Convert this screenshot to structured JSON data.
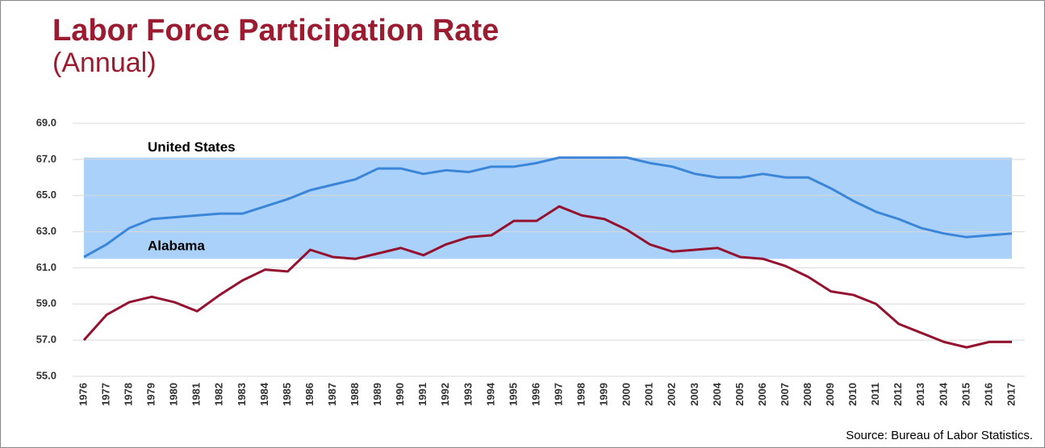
{
  "chart_data": {
    "type": "line",
    "title": "Labor Force Participation Rate",
    "subtitle": "(Annual)",
    "source": "Source:  Bureau of Labor Statistics.",
    "categories": [
      "1976",
      "1977",
      "1978",
      "1979",
      "1980",
      "1981",
      "1982",
      "1983",
      "1984",
      "1985",
      "1986",
      "1987",
      "1988",
      "1989",
      "1990",
      "1991",
      "1992",
      "1993",
      "1994",
      "1995",
      "1996",
      "1997",
      "1998",
      "1999",
      "2000",
      "2001",
      "2002",
      "2003",
      "2004",
      "2005",
      "2006",
      "2007",
      "2008",
      "2009",
      "2010",
      "2011",
      "2012",
      "2013",
      "2014",
      "2015",
      "2016",
      "2017"
    ],
    "series": [
      {
        "name": "United States",
        "color": "#3b86d8",
        "values": [
          61.6,
          62.3,
          63.2,
          63.7,
          63.8,
          63.9,
          64.0,
          64.0,
          64.4,
          64.8,
          65.3,
          65.6,
          65.9,
          66.5,
          66.5,
          66.2,
          66.4,
          66.3,
          66.6,
          66.6,
          66.8,
          67.1,
          67.1,
          67.1,
          67.1,
          66.8,
          66.6,
          66.2,
          66.0,
          66.0,
          66.2,
          66.0,
          66.0,
          65.4,
          64.7,
          64.1,
          63.7,
          63.2,
          62.9,
          62.7,
          62.8,
          62.9
        ]
      },
      {
        "name": "Alabama",
        "color": "#94122f",
        "values": [
          57.0,
          58.4,
          59.1,
          59.4,
          59.1,
          58.6,
          59.5,
          60.3,
          60.9,
          60.8,
          62.0,
          61.6,
          61.5,
          61.8,
          62.1,
          61.7,
          62.3,
          62.7,
          62.8,
          63.6,
          63.6,
          64.4,
          63.9,
          63.7,
          63.1,
          62.3,
          61.9,
          62.0,
          62.1,
          61.6,
          61.5,
          61.1,
          60.5,
          59.7,
          59.5,
          59.0,
          57.9,
          57.4,
          56.9,
          56.6,
          56.9,
          56.9
        ]
      }
    ],
    "highlight_range": [
      61.5,
      67.1
    ],
    "highlight_color": "#a9d1fa",
    "ylim": [
      55,
      69
    ],
    "yticks": [
      {
        "value": 55,
        "label": "55.0"
      },
      {
        "value": 57,
        "label": "57.0"
      },
      {
        "value": 59,
        "label": "59.0"
      },
      {
        "value": 61,
        "label": "61.0"
      },
      {
        "value": 63,
        "label": "63.0"
      },
      {
        "value": 65,
        "label": "65.0"
      },
      {
        "value": 67,
        "label": "67.0"
      },
      {
        "value": 69,
        "label": "69.0"
      }
    ],
    "grid": true
  }
}
